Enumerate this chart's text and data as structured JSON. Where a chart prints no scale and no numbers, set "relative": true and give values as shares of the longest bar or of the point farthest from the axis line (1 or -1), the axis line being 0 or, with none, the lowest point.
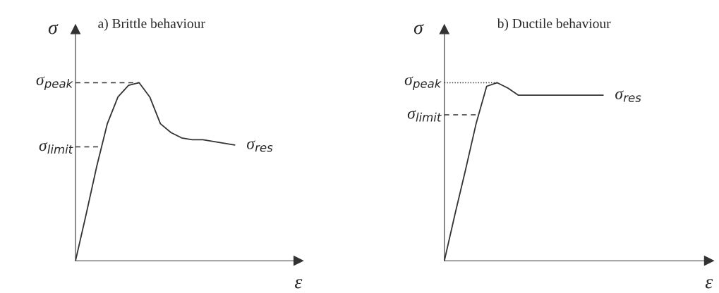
{
  "chart_data": [
    {
      "type": "line",
      "title": "a) Brittle behaviour",
      "ylabel": "σ",
      "xlabel": "ε",
      "relative": true,
      "marker": "none",
      "line_style": "solid",
      "categories": [
        null,
        null,
        null,
        null,
        null,
        null,
        null,
        null,
        null,
        null,
        null,
        null,
        null,
        null,
        null,
        null,
        null,
        null,
        null,
        null,
        null,
        null
      ],
      "series": [
        {
          "color": "#333333",
          "values": [
            0,
            0.26,
            0.53,
            0.77,
            0.92,
            0.985,
            1.0,
            0.92,
            0.77,
            0.72,
            0.69,
            0.68,
            0.68,
            0.67,
            0.66,
            0.65,
            null,
            null,
            null,
            null,
            null,
            null
          ]
        }
      ],
      "ref_lines": [
        {
          "axis": "y",
          "value": 1.0,
          "label": "σ$_{peak}$",
          "line_style": "dashed",
          "color": "#333333"
        },
        {
          "axis": "y",
          "value": 0.64,
          "label": "σ$_{limit}$",
          "line_style": "dashed",
          "color": "#333333"
        }
      ],
      "annotations": [
        "σ$_{res}$"
      ]
    },
    {
      "type": "line",
      "title": "b) Ductile behaviour",
      "ylabel": "σ",
      "xlabel": "ε",
      "relative": true,
      "marker": "none",
      "line_style": "solid",
      "categories": [
        null,
        null,
        null,
        null,
        null,
        null,
        null,
        null,
        null,
        null,
        null,
        null,
        null,
        null,
        null,
        null,
        null,
        null,
        null,
        null,
        null,
        null,
        null,
        null,
        null,
        null
      ],
      "series": [
        {
          "color": "#333333",
          "values": [
            0,
            0.26,
            0.51,
            0.77,
            0.98,
            1.0,
            0.97,
            0.93,
            0.93,
            0.93,
            0.93,
            0.93,
            0.93,
            0.93,
            0.93,
            0.93,
            null,
            null,
            null,
            null,
            null,
            null,
            null,
            null,
            null,
            null
          ]
        }
      ],
      "ref_lines": [
        {
          "axis": "y",
          "value": 1.0,
          "label": "σ$_{peak}$",
          "line_style": "dotted",
          "color": "#333333"
        },
        {
          "axis": "y",
          "value": 0.82,
          "label": "σ$_{limit}$",
          "line_style": "dashed",
          "color": "#333333"
        }
      ],
      "annotations": [
        "σ$_{res}$"
      ]
    }
  ]
}
